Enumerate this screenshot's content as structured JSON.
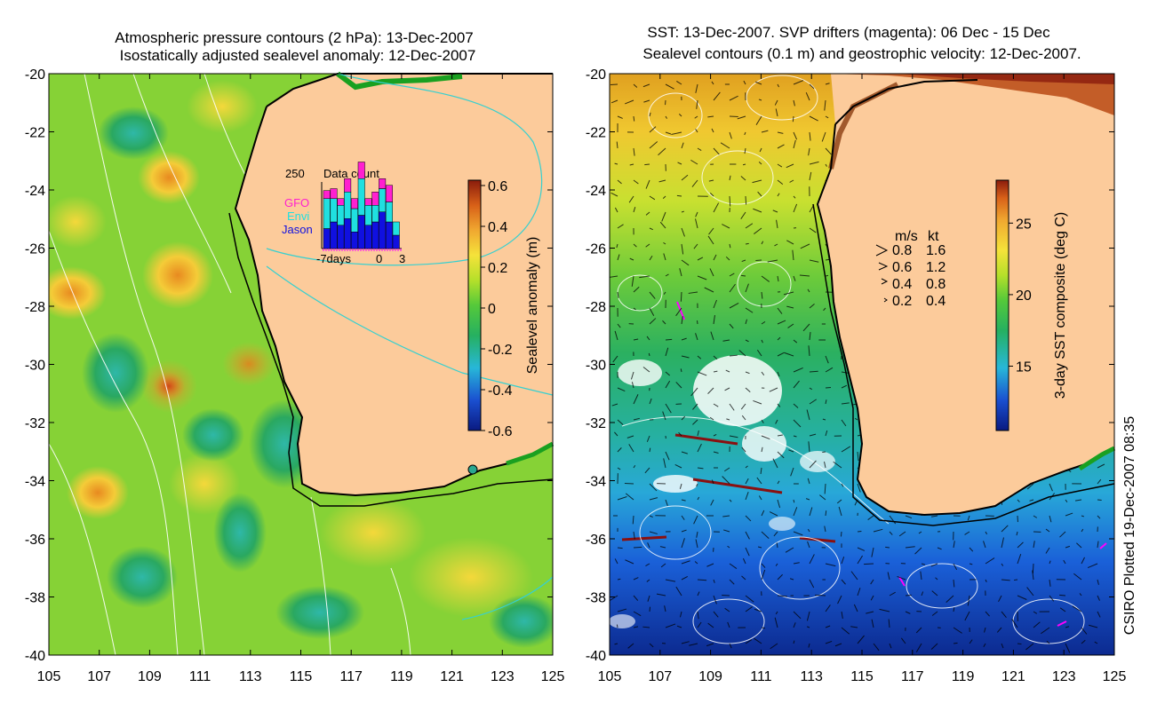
{
  "left_panel": {
    "title_line1": "Atmospheric pressure contours (2 hPa): 13-Dec-2007",
    "title_line2": "Isostatically adjusted sealevel anomaly: 12-Dec-2007",
    "colorbar": {
      "label": "Sealevel anomaly (m)",
      "ticks": [
        "0.6",
        "0.4",
        "0.2",
        "0",
        "-0.2",
        "-0.4",
        "-0.6"
      ],
      "range": [
        -0.6,
        0.6
      ]
    },
    "data_count_inset": {
      "title": "Data count",
      "ymax_label": "250",
      "legend": [
        "GFO",
        "Envi",
        "Jason"
      ],
      "xlabels": [
        "-7days",
        "0",
        "3"
      ],
      "bars": [
        {
          "jason": 0.3,
          "envi": 0.45,
          "gfo": 0.12
        },
        {
          "jason": 0.4,
          "envi": 0.35,
          "gfo": 0.15
        },
        {
          "jason": 0.35,
          "envi": 0.3,
          "gfo": 0.1
        },
        {
          "jason": 0.45,
          "envi": 0.4,
          "gfo": 0.2
        },
        {
          "jason": 0.25,
          "envi": 0.35,
          "gfo": 0.15
        },
        {
          "jason": 0.5,
          "envi": 0.55,
          "gfo": 0.25
        },
        {
          "jason": 0.35,
          "envi": 0.3,
          "gfo": 0.1
        },
        {
          "jason": 0.4,
          "envi": 0.25,
          "gfo": 0.2
        },
        {
          "jason": 0.55,
          "envi": 0.35,
          "gfo": 0.15
        },
        {
          "jason": 0.4,
          "envi": 0.3,
          "gfo": 0.25
        },
        {
          "jason": 0.2,
          "envi": 0.2,
          "gfo": 0.0
        }
      ]
    }
  },
  "right_panel": {
    "title_line1": "SST: 13-Dec-2007. SVP drifters (magenta): 06 Dec - 15 Dec",
    "title_line2": "Sealevel contours (0.1 m) and geostrophic velocity: 12-Dec-2007.",
    "colorbar": {
      "label": "3-day SST composite (deg C)",
      "ticks": [
        "25",
        "20",
        "15"
      ],
      "range": [
        10.5,
        28
      ]
    },
    "velocity_legend": {
      "header_ms": "m/s",
      "header_kt": "kt",
      "rows": [
        {
          "ms": "0.8",
          "kt": "1.6"
        },
        {
          "ms": "0.6",
          "kt": "1.2"
        },
        {
          "ms": "0.4",
          "kt": "0.8"
        },
        {
          "ms": "0.2",
          "kt": "0.4"
        }
      ]
    }
  },
  "axes": {
    "lon_ticks": [
      "105",
      "107",
      "109",
      "111",
      "113",
      "115",
      "117",
      "119",
      "121",
      "123",
      "125"
    ],
    "lat_ticks": [
      "-20",
      "-22",
      "-24",
      "-26",
      "-28",
      "-30",
      "-32",
      "-34",
      "-36",
      "-38",
      "-40"
    ],
    "lon_range": [
      105,
      125
    ],
    "lat_range": [
      -40,
      -20
    ]
  },
  "credit": "CSIRO Plotted 19-Dec-2007 08:35",
  "colors": {
    "land": "#fccb9b",
    "drifter": "#ff00ff",
    "gfo": "#ff20d0",
    "envi": "#20e0e0",
    "jason": "#1010e0"
  }
}
